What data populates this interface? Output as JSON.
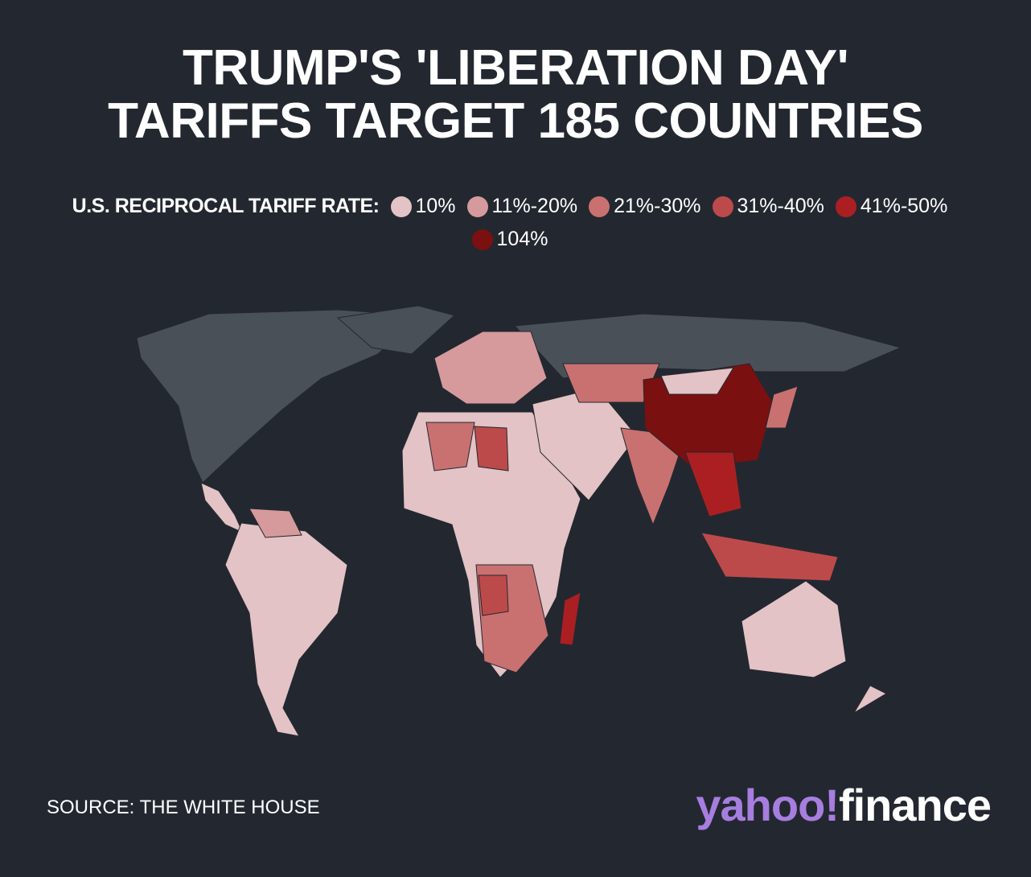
{
  "header": {
    "title_lines": [
      "TRUMP'S 'LIBERATION DAY'",
      "TARIFFS TARGET 185 COUNTRIES"
    ]
  },
  "legend": {
    "label": "U.S. RECIPROCAL TARIFF RATE:",
    "items": [
      {
        "label": "10%",
        "color": "#e3c3c5"
      },
      {
        "label": "11%-20%",
        "color": "#d69a9c"
      },
      {
        "label": "21%-30%",
        "color": "#c97170"
      },
      {
        "label": "31%-40%",
        "color": "#bd4a4a"
      },
      {
        "label": "41%-50%",
        "color": "#ab1f22"
      },
      {
        "label": "104%",
        "color": "#7a1010"
      }
    ]
  },
  "footer": {
    "source": "SOURCE: THE WHITE HOUSE",
    "logo": {
      "brand": "yahoo!",
      "product": "finance"
    }
  }
}
